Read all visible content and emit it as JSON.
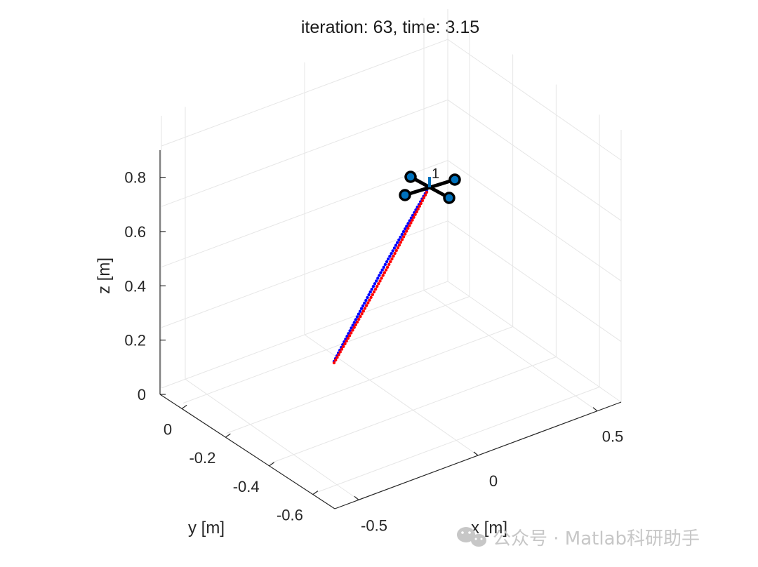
{
  "chart_data": {
    "type": "scatter",
    "title": "iteration: 63, time: 3.15",
    "xlabel": "x [m]",
    "ylabel": "y [m]",
    "zlabel": "z [m]",
    "xlim": [
      -0.6,
      0.6
    ],
    "ylim": [
      -0.7,
      0.1
    ],
    "zlim": [
      0,
      0.9
    ],
    "xticks": [
      -0.5,
      0,
      0.5
    ],
    "xticklabels": [
      "-0.5",
      "0",
      "0.5"
    ],
    "yticks": [
      0,
      -0.2,
      -0.4,
      -0.6
    ],
    "yticklabels": [
      "0",
      "-0.2",
      "-0.4",
      "-0.6"
    ],
    "zticks": [
      0,
      0.2,
      0.4,
      0.6,
      0.8
    ],
    "zticklabels": [
      "0",
      "0.2",
      "0.4",
      "0.6",
      "0.8"
    ],
    "grid": true,
    "series": [
      {
        "color": "#0000ff",
        "start": [
          -0.22,
          -0.48,
          0.1
        ],
        "end": [
          0.3,
          -0.2,
          0.72
        ],
        "points": 63
      },
      {
        "color": "#ff0000",
        "start": [
          -0.22,
          -0.48,
          0.1
        ],
        "end": [
          0.31,
          -0.21,
          0.71
        ],
        "points": 63
      }
    ],
    "drone": {
      "id_label": "1",
      "position": [
        0.31,
        -0.2,
        0.72
      ],
      "arm_color": "#000000",
      "rotor_color": "#0072bd"
    }
  },
  "watermark": {
    "text": "公众号 · Matlab科研助手"
  }
}
